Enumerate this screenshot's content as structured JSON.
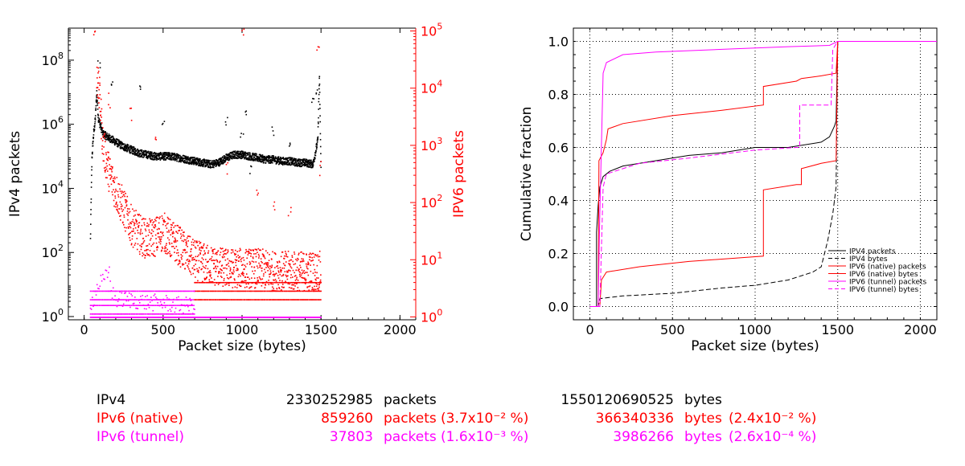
{
  "colors": {
    "ipv4": "#000000",
    "ipv6_native": "#ff0000",
    "ipv6_tunnel": "#ff00ff",
    "grid": "#000000"
  },
  "chart_data": [
    {
      "type": "scatter",
      "xlabel": "Packet size (bytes)",
      "ylabel_left": "IPv4 packets",
      "ylabel_right": "IPV6 packets",
      "xlim": [
        -100,
        2100
      ],
      "x_ticks": [
        0,
        500,
        1000,
        1500,
        2000
      ],
      "x_tick_labels": [
        "0",
        "500",
        "1000",
        "1500",
        "2000"
      ],
      "y_left_scale": "log",
      "y_left_range_log10": [
        -0.1,
        9.0
      ],
      "y_left_ticks": [
        {
          "exp": 0,
          "label_base": "10",
          "label_exp": "0"
        },
        {
          "exp": 2,
          "label_base": "10",
          "label_exp": "2"
        },
        {
          "exp": 4,
          "label_base": "10",
          "label_exp": "4"
        },
        {
          "exp": 6,
          "label_base": "10",
          "label_exp": "6"
        },
        {
          "exp": 8,
          "label_base": "10",
          "label_exp": "8"
        }
      ],
      "y_right_scale": "log",
      "y_right_range_log10": [
        -0.05,
        5.05
      ],
      "y_right_ticks": [
        {
          "exp": 0,
          "label_base": "10",
          "label_exp": "0"
        },
        {
          "exp": 1,
          "label_base": "10",
          "label_exp": "1"
        },
        {
          "exp": 2,
          "label_base": "10",
          "label_exp": "2"
        },
        {
          "exp": 3,
          "label_base": "10",
          "label_exp": "3"
        },
        {
          "exp": 4,
          "label_base": "10",
          "label_exp": "4"
        },
        {
          "exp": 5,
          "label_base": "10",
          "label_exp": "5"
        }
      ],
      "series": [
        {
          "key": "ipv4",
          "axis": "left",
          "style": "dots",
          "points_log10": [
            [
              40,
              2.4
            ],
            [
              45,
              3.8
            ],
            [
              50,
              5.0
            ],
            [
              60,
              5.7
            ],
            [
              70,
              6.1
            ],
            [
              80,
              7.0
            ],
            [
              90,
              6.2
            ],
            [
              100,
              6.0
            ],
            [
              120,
              5.7
            ],
            [
              150,
              5.6
            ],
            [
              200,
              5.45
            ],
            [
              250,
              5.3
            ],
            [
              300,
              5.2
            ],
            [
              350,
              5.1
            ],
            [
              400,
              5.05
            ],
            [
              450,
              5.0
            ],
            [
              500,
              5.0
            ],
            [
              550,
              5.0
            ],
            [
              600,
              4.95
            ],
            [
              650,
              4.9
            ],
            [
              700,
              4.85
            ],
            [
              750,
              4.8
            ],
            [
              800,
              4.75
            ],
            [
              850,
              4.8
            ],
            [
              900,
              4.95
            ],
            [
              950,
              5.05
            ],
            [
              1000,
              5.05
            ],
            [
              1050,
              5.0
            ],
            [
              1100,
              4.95
            ],
            [
              1150,
              4.9
            ],
            [
              1200,
              4.9
            ],
            [
              1250,
              4.85
            ],
            [
              1300,
              4.85
            ],
            [
              1350,
              4.8
            ],
            [
              1400,
              4.8
            ],
            [
              1450,
              4.75
            ],
            [
              1480,
              5.5
            ],
            [
              1490,
              7.5
            ],
            [
              1500,
              4.6
            ]
          ],
          "outliers_log10": [
            [
              95,
              7.9
            ],
            [
              180,
              7.3
            ],
            [
              350,
              7.1
            ],
            [
              500,
              6.0
            ],
            [
              900,
              6.1
            ],
            [
              1000,
              5.6
            ],
            [
              1030,
              6.3
            ],
            [
              1050,
              4.6
            ],
            [
              1200,
              5.8
            ],
            [
              1300,
              5.4
            ],
            [
              1450,
              6.8
            ],
            [
              1470,
              7.0
            ]
          ]
        },
        {
          "key": "ipv6_native",
          "axis": "right",
          "style": "dots",
          "points_log10": [
            [
              80,
              4.3
            ],
            [
              90,
              4.0
            ],
            [
              100,
              3.8
            ],
            [
              120,
              3.0
            ],
            [
              150,
              2.6
            ],
            [
              200,
              2.2
            ],
            [
              250,
              1.9
            ],
            [
              300,
              1.6
            ],
            [
              350,
              1.45
            ],
            [
              400,
              1.35
            ],
            [
              450,
              1.4
            ],
            [
              500,
              1.5
            ],
            [
              550,
              1.35
            ],
            [
              600,
              1.25
            ],
            [
              650,
              1.1
            ],
            [
              700,
              1.0
            ],
            [
              750,
              0.95
            ],
            [
              800,
              0.9
            ],
            [
              900,
              0.85
            ],
            [
              1000,
              0.85
            ],
            [
              1100,
              0.85
            ],
            [
              1200,
              0.8
            ],
            [
              1300,
              0.8
            ],
            [
              1400,
              0.8
            ],
            [
              1500,
              0.8
            ]
          ],
          "outliers_log10": [
            [
              60,
              5.0
            ],
            [
              95,
              4.2
            ],
            [
              160,
              3.8
            ],
            [
              300,
              3.5
            ],
            [
              450,
              3.0
            ],
            [
              900,
              2.6
            ],
            [
              1010,
              5.0
            ],
            [
              1100,
              2.2
            ],
            [
              1200,
              2.0
            ],
            [
              1300,
              1.8
            ],
            [
              1480,
              4.8
            ],
            [
              1490,
              2.6
            ]
          ],
          "floor_levels_log10": [
            0.3,
            0.45,
            0.6
          ]
        },
        {
          "key": "ipv6_tunnel",
          "axis": "right",
          "style": "dots",
          "points_log10": [
            [
              40,
              0.25
            ],
            [
              60,
              0.3
            ],
            [
              80,
              0.5
            ],
            [
              100,
              0.6
            ],
            [
              120,
              0.6
            ],
            [
              140,
              0.7
            ],
            [
              160,
              0.8
            ],
            [
              180,
              0.4
            ],
            [
              200,
              0.3
            ],
            [
              300,
              0.3
            ],
            [
              400,
              0.25
            ],
            [
              500,
              0.25
            ],
            [
              600,
              0.2
            ],
            [
              700,
              0.2
            ]
          ],
          "floor_levels_log10": [
            0.05,
            0.2,
            0.3,
            0.45
          ]
        }
      ]
    },
    {
      "type": "line",
      "xlabel": "Packet size (bytes)",
      "ylabel": "Cumulative fraction",
      "xlim": [
        -100,
        2100
      ],
      "ylim": [
        -0.05,
        1.05
      ],
      "grid": true,
      "legend_placement": "bottom-right",
      "x_ticks": [
        0,
        500,
        1000,
        1500,
        2000
      ],
      "x_tick_labels": [
        "0",
        "500",
        "1000",
        "1500",
        "2000"
      ],
      "y_ticks": [
        0.0,
        0.2,
        0.4,
        0.6,
        0.8,
        1.0
      ],
      "y_tick_labels": [
        "0.0",
        "0.2",
        "0.4",
        "0.6",
        "0.8",
        "1.0"
      ],
      "series": [
        {
          "name": "IPV4 packets",
          "key": "ipv4",
          "dash": "solid",
          "points": [
            [
              0,
              0
            ],
            [
              40,
              0
            ],
            [
              40,
              0.28
            ],
            [
              50,
              0.38
            ],
            [
              60,
              0.45
            ],
            [
              80,
              0.49
            ],
            [
              120,
              0.51
            ],
            [
              200,
              0.53
            ],
            [
              400,
              0.55
            ],
            [
              600,
              0.57
            ],
            [
              800,
              0.58
            ],
            [
              1000,
              0.6
            ],
            [
              1200,
              0.6
            ],
            [
              1400,
              0.62
            ],
            [
              1450,
              0.64
            ],
            [
              1480,
              0.68
            ],
            [
              1490,
              0.7
            ],
            [
              1500,
              1.0
            ],
            [
              2100,
              1.0
            ]
          ]
        },
        {
          "name": "IPV4 bytes",
          "key": "ipv4",
          "dash": "dashed",
          "points": [
            [
              0,
              0
            ],
            [
              50,
              0
            ],
            [
              60,
              0.03
            ],
            [
              200,
              0.04
            ],
            [
              500,
              0.05
            ],
            [
              800,
              0.07
            ],
            [
              1000,
              0.08
            ],
            [
              1200,
              0.1
            ],
            [
              1350,
              0.13
            ],
            [
              1400,
              0.15
            ],
            [
              1420,
              0.2
            ],
            [
              1440,
              0.25
            ],
            [
              1470,
              0.35
            ],
            [
              1490,
              0.45
            ],
            [
              1500,
              1.0
            ],
            [
              2100,
              1.0
            ]
          ]
        },
        {
          "name": "IPV6 (native) packets",
          "key": "ipv6_native",
          "dash": "solid",
          "points": [
            [
              0,
              0
            ],
            [
              50,
              0
            ],
            [
              55,
              0.55
            ],
            [
              80,
              0.58
            ],
            [
              100,
              0.63
            ],
            [
              110,
              0.67
            ],
            [
              200,
              0.69
            ],
            [
              500,
              0.72
            ],
            [
              800,
              0.74
            ],
            [
              1050,
              0.76
            ],
            [
              1050,
              0.83
            ],
            [
              1250,
              0.85
            ],
            [
              1280,
              0.86
            ],
            [
              1400,
              0.87
            ],
            [
              1490,
              0.88
            ],
            [
              1500,
              1.0
            ],
            [
              2100,
              1.0
            ]
          ]
        },
        {
          "name": "IPV6 (native) bytes",
          "key": "ipv6_native",
          "dash": "solid",
          "points": [
            [
              0,
              0
            ],
            [
              60,
              0
            ],
            [
              70,
              0.1
            ],
            [
              100,
              0.13
            ],
            [
              300,
              0.15
            ],
            [
              600,
              0.17
            ],
            [
              1050,
              0.19
            ],
            [
              1050,
              0.44
            ],
            [
              1250,
              0.46
            ],
            [
              1280,
              0.46
            ],
            [
              1280,
              0.52
            ],
            [
              1400,
              0.54
            ],
            [
              1490,
              0.55
            ],
            [
              1500,
              1.0
            ],
            [
              2100,
              1.0
            ]
          ]
        },
        {
          "name": "IPV6 (tunnel) packets",
          "key": "ipv6_tunnel",
          "dash": "solid",
          "points": [
            [
              0,
              0
            ],
            [
              50,
              0
            ],
            [
              60,
              0.35
            ],
            [
              80,
              0.88
            ],
            [
              100,
              0.92
            ],
            [
              200,
              0.95
            ],
            [
              400,
              0.96
            ],
            [
              800,
              0.97
            ],
            [
              1200,
              0.98
            ],
            [
              1450,
              0.985
            ],
            [
              1500,
              1.0
            ],
            [
              2100,
              1.0
            ]
          ]
        },
        {
          "name": "IPV6 (tunnel) bytes",
          "key": "ipv6_tunnel",
          "dash": "dashed",
          "points": [
            [
              0,
              0
            ],
            [
              60,
              0
            ],
            [
              80,
              0.45
            ],
            [
              100,
              0.5
            ],
            [
              300,
              0.54
            ],
            [
              600,
              0.56
            ],
            [
              1000,
              0.59
            ],
            [
              1250,
              0.6
            ],
            [
              1270,
              0.6
            ],
            [
              1270,
              0.76
            ],
            [
              1460,
              0.76
            ],
            [
              1470,
              0.97
            ],
            [
              1500,
              1.0
            ],
            [
              2100,
              1.0
            ]
          ]
        }
      ]
    }
  ],
  "summary": {
    "rows": [
      {
        "key": "ipv4",
        "label": "IPv4",
        "packets": "2330252985",
        "packets_unit": "packets",
        "packets_pct": "",
        "bytes": "1550120690525",
        "bytes_unit": "bytes",
        "bytes_pct": ""
      },
      {
        "key": "ipv6_native",
        "label": "IPv6 (native)",
        "packets": "859260",
        "packets_unit": "packets",
        "packets_pct": "(3.7x10⁻² %)",
        "bytes": "366340336",
        "bytes_unit": "bytes",
        "bytes_pct": "(2.4x10⁻² %)"
      },
      {
        "key": "ipv6_tunnel",
        "label": "IPv6 (tunnel)",
        "packets": "37803",
        "packets_unit": "packets",
        "packets_pct": "(1.6x10⁻³ %)",
        "bytes": "3986266",
        "bytes_unit": "bytes",
        "bytes_pct": "(2.6x10⁻⁴ %)"
      }
    ]
  }
}
